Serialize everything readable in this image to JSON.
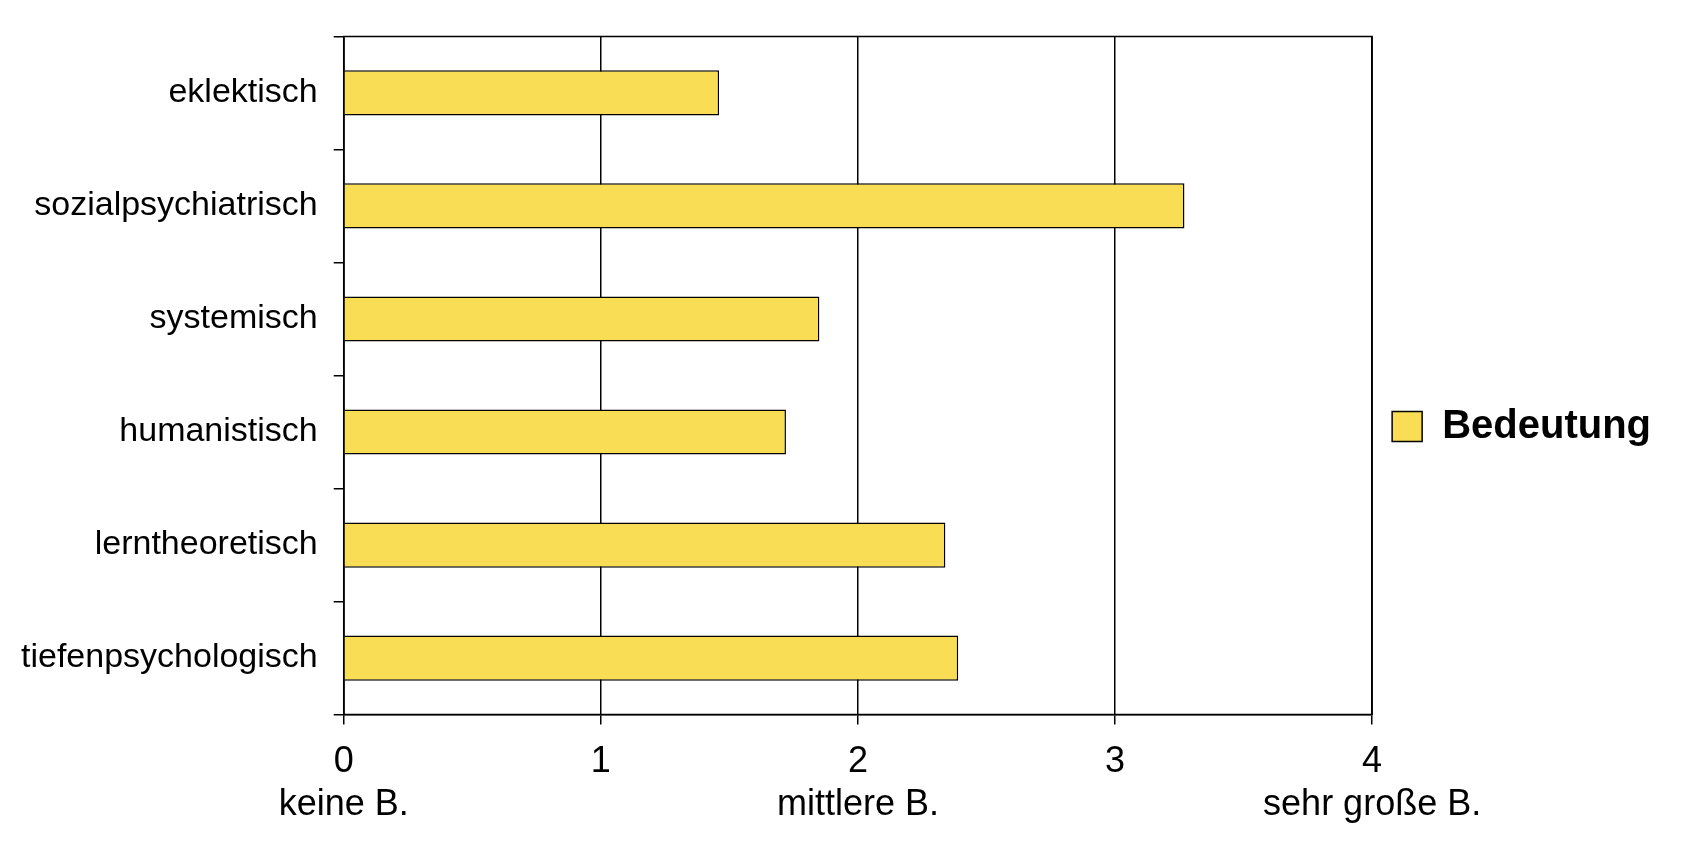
{
  "chart_data": {
    "type": "bar",
    "orientation": "horizontal",
    "categories": [
      "eklektisch",
      "sozialpsychiatrisch",
      "systemisch",
      "humanistisch",
      "lerntheoretisch",
      "tiefenpsychologisch"
    ],
    "series": [
      {
        "name": "Bedeutung",
        "color": "#f9dd55",
        "values": [
          1.46,
          3.27,
          1.85,
          1.72,
          2.34,
          2.39
        ]
      }
    ],
    "xlim": [
      0,
      4
    ],
    "xticks": [
      {
        "value": 0,
        "label": "0\nkeine B."
      },
      1,
      {
        "value": 2,
        "label": "2\nmittlere B."
      },
      3,
      {
        "value": 4,
        "label": "4\nsehr große B."
      }
    ],
    "grid": "x",
    "legend": "right"
  }
}
